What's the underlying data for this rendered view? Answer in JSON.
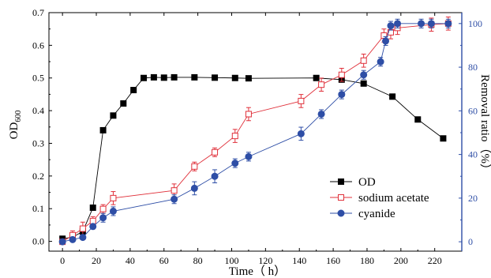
{
  "chart_data": {
    "type": "line",
    "xlabel": "Time（ h）",
    "ylabel_left": {
      "main": "OD",
      "sub": "600"
    },
    "ylabel_right": "Removal ratio（%）",
    "xlim": [
      -8,
      236
    ],
    "ylim_left": [
      -0.03,
      0.7
    ],
    "ylim_right": [
      -4.3,
      105
    ],
    "xticks": [
      "0",
      "20",
      "40",
      "60",
      "80",
      "100",
      "120",
      "140",
      "160",
      "180",
      "200",
      "220"
    ],
    "yticks_left": [
      "0.0",
      "0.1",
      "0.2",
      "0.3",
      "0.4",
      "0.5",
      "0.6",
      "0.7"
    ],
    "yticks_right": [
      "0",
      "20",
      "40",
      "60",
      "80",
      "100"
    ],
    "grid": false,
    "legend_position": "bottom-right",
    "colors": {
      "OD": "#000000",
      "sodium_acetate": "#e0303a",
      "cyanide": "#2e4ea6",
      "right_axis": "#2e4ea6"
    },
    "series": [
      {
        "name": "OD",
        "axis": "left",
        "marker": "filled-square",
        "x": [
          0,
          6,
          12,
          18,
          24,
          30,
          36,
          42,
          48,
          54,
          60,
          66,
          78,
          90,
          102,
          110,
          150,
          165,
          178,
          195,
          210,
          225
        ],
        "values": [
          0.008,
          0.013,
          0.03,
          0.103,
          0.34,
          0.385,
          0.422,
          0.463,
          0.5,
          0.502,
          0.501,
          0.502,
          0.502,
          0.501,
          0.5,
          0.499,
          0.5,
          0.495,
          0.483,
          0.443,
          0.373,
          0.315
        ],
        "error": [
          0.004,
          0.003,
          0.003,
          0.004,
          0.005,
          0.004,
          0.004,
          0.004,
          0.003,
          0.003,
          0.003,
          0.003,
          0.003,
          0.003,
          0.003,
          0.003,
          0.003,
          0.004,
          0.004,
          0.004,
          0.003,
          0.003
        ]
      },
      {
        "name": "sodium acetate",
        "axis": "right",
        "marker": "open-square",
        "x": [
          0,
          6,
          12,
          18,
          24,
          30,
          66,
          78,
          90,
          102,
          110,
          141,
          153,
          165,
          178,
          190,
          194,
          198,
          218,
          228
        ],
        "values": [
          0,
          3,
          6,
          9.5,
          15,
          20,
          23.5,
          34.5,
          41,
          48.5,
          58.5,
          64.5,
          72,
          76.5,
          83,
          94.5,
          96,
          98,
          99.5,
          100
        ],
        "error": [
          1,
          2,
          3,
          2,
          2,
          3,
          3,
          2,
          2,
          3,
          3,
          3,
          3,
          3,
          3,
          3,
          3,
          3,
          3,
          3
        ]
      },
      {
        "name": "cyanide",
        "axis": "right",
        "marker": "filled-circle",
        "x": [
          0,
          6,
          12,
          18,
          24,
          30,
          66,
          78,
          90,
          102,
          110,
          141,
          153,
          165,
          178,
          188,
          191,
          194,
          198,
          212,
          218,
          228
        ],
        "values": [
          0,
          1,
          2,
          7,
          11,
          14,
          19.5,
          24.5,
          30,
          36,
          39,
          49.5,
          58.5,
          67.5,
          76.5,
          82.5,
          92,
          99,
          100,
          100,
          100,
          100
        ],
        "error": [
          1,
          1,
          1,
          1,
          2,
          2,
          2,
          3,
          3,
          2,
          2,
          3,
          2,
          2,
          2,
          2,
          2,
          2,
          2,
          2,
          2,
          2
        ]
      }
    ]
  }
}
